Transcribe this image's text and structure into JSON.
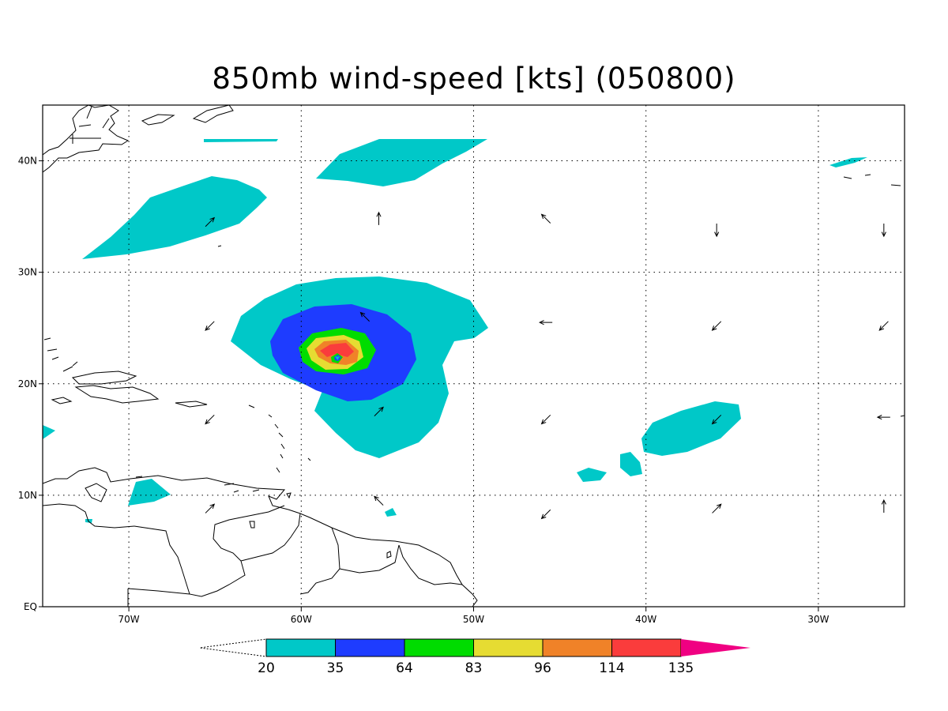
{
  "title": "850mb wind-speed [kts] (050800)",
  "map": {
    "lon_range": [
      -75,
      -25
    ],
    "lat_range": [
      0,
      45
    ],
    "x_ticks": [
      {
        "lon": -70,
        "label": "70W"
      },
      {
        "lon": -60,
        "label": "60W"
      },
      {
        "lon": -50,
        "label": "50W"
      },
      {
        "lon": -40,
        "label": "40W"
      },
      {
        "lon": -30,
        "label": "30W"
      }
    ],
    "y_ticks": [
      {
        "lat": 0,
        "label": "EQ"
      },
      {
        "lat": 10,
        "label": "10N"
      },
      {
        "lat": 20,
        "label": "20N"
      },
      {
        "lat": 30,
        "label": "30N"
      },
      {
        "lat": 40,
        "label": "40N"
      }
    ],
    "gridlines": "dotted",
    "contour_colors": {
      "20-35": "#00c8c8",
      "35-64": "#1e3cff",
      "64-83": "#00dc00",
      "83-96": "#e6dc32",
      "96-114": "#f08228",
      "114-135": "#fa3c3c",
      "135+": "#f00082"
    },
    "storm_center": {
      "lon": -57.9,
      "lat": 22.3
    },
    "wind_vectors": [
      {
        "lon": -65.3,
        "lat": 34.5,
        "dir": "ne"
      },
      {
        "lon": -55.5,
        "lat": 34.8,
        "dir": "n"
      },
      {
        "lon": -45.8,
        "lat": 34.8,
        "dir": "nw"
      },
      {
        "lon": -35.9,
        "lat": 33.8,
        "dir": "s"
      },
      {
        "lon": -26.2,
        "lat": 33.8,
        "dir": "s"
      },
      {
        "lon": -65.3,
        "lat": 25.2,
        "dir": "sw"
      },
      {
        "lon": -56.3,
        "lat": 26.0,
        "dir": "nw"
      },
      {
        "lon": -45.8,
        "lat": 25.5,
        "dir": "w"
      },
      {
        "lon": -35.9,
        "lat": 25.2,
        "dir": "sw"
      },
      {
        "lon": -26.2,
        "lat": 25.2,
        "dir": "sw"
      },
      {
        "lon": -65.3,
        "lat": 16.8,
        "dir": "sw"
      },
      {
        "lon": -55.5,
        "lat": 17.5,
        "dir": "ne"
      },
      {
        "lon": -45.8,
        "lat": 16.8,
        "dir": "sw"
      },
      {
        "lon": -35.9,
        "lat": 16.8,
        "dir": "sw"
      },
      {
        "lon": -26.2,
        "lat": 17.0,
        "dir": "w"
      },
      {
        "lon": -65.3,
        "lat": 8.8,
        "dir": "ne"
      },
      {
        "lon": -55.5,
        "lat": 9.5,
        "dir": "nw"
      },
      {
        "lon": -45.8,
        "lat": 8.3,
        "dir": "sw"
      },
      {
        "lon": -35.9,
        "lat": 8.8,
        "dir": "ne"
      },
      {
        "lon": -26.2,
        "lat": 9.0,
        "dir": "n"
      }
    ]
  },
  "colorbar": {
    "labels": [
      "20",
      "35",
      "64",
      "83",
      "96",
      "114",
      "135"
    ],
    "colors": [
      "#00c8c8",
      "#1e3cff",
      "#00dc00",
      "#e6dc32",
      "#f08228",
      "#fa3c3c",
      "#f00082"
    ]
  }
}
